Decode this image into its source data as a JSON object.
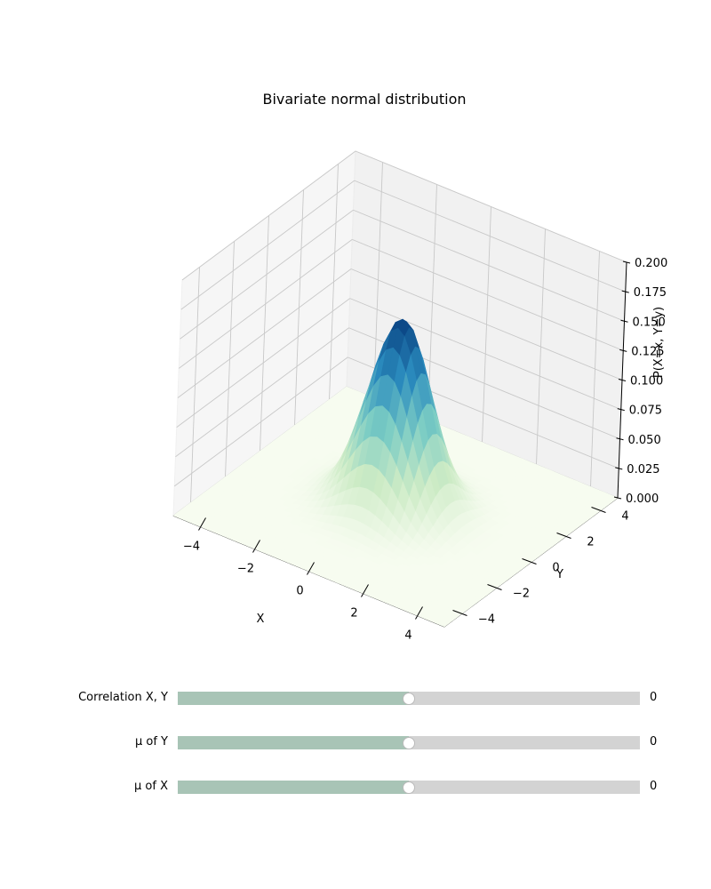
{
  "chart_data": {
    "type": "surface",
    "title": "Bivariate normal distribution",
    "xlabel": "X",
    "ylabel": "Y",
    "zlabel": "P(X=x, Y=y)",
    "xlim": [
      -5,
      5
    ],
    "ylim": [
      -5,
      5
    ],
    "zlim": [
      0,
      0.2
    ],
    "x_ticks": [
      "−4",
      "−2",
      "0",
      "2",
      "4"
    ],
    "y_ticks": [
      "−4",
      "−2",
      "0",
      "2",
      "4"
    ],
    "z_ticks": [
      "0.000",
      "0.025",
      "0.050",
      "0.075",
      "0.100",
      "0.125",
      "0.150",
      "0.175",
      "0.200"
    ],
    "surface": {
      "function": "bivariate normal pdf",
      "mu_x": 0,
      "mu_y": 0,
      "sigma_x": 1,
      "sigma_y": 1,
      "rho": 0,
      "peak": 0.159
    },
    "colormap": [
      "#f7fcf0",
      "#ccebc5",
      "#7bccc4",
      "#2b8cbe",
      "#084081"
    ],
    "grid": true
  },
  "sliders": [
    {
      "label": "Correlation X, Y",
      "value_text": "0",
      "min": -1,
      "max": 1,
      "value": 0
    },
    {
      "label": "μ of Y",
      "value_text": "0",
      "min": -5,
      "max": 5,
      "value": 0
    },
    {
      "label": "μ of X",
      "value_text": "0",
      "min": -5,
      "max": 5,
      "value": 0
    }
  ],
  "colors": {
    "slider_fill": "#a8c4b6",
    "slider_track": "#d3d3d3"
  }
}
